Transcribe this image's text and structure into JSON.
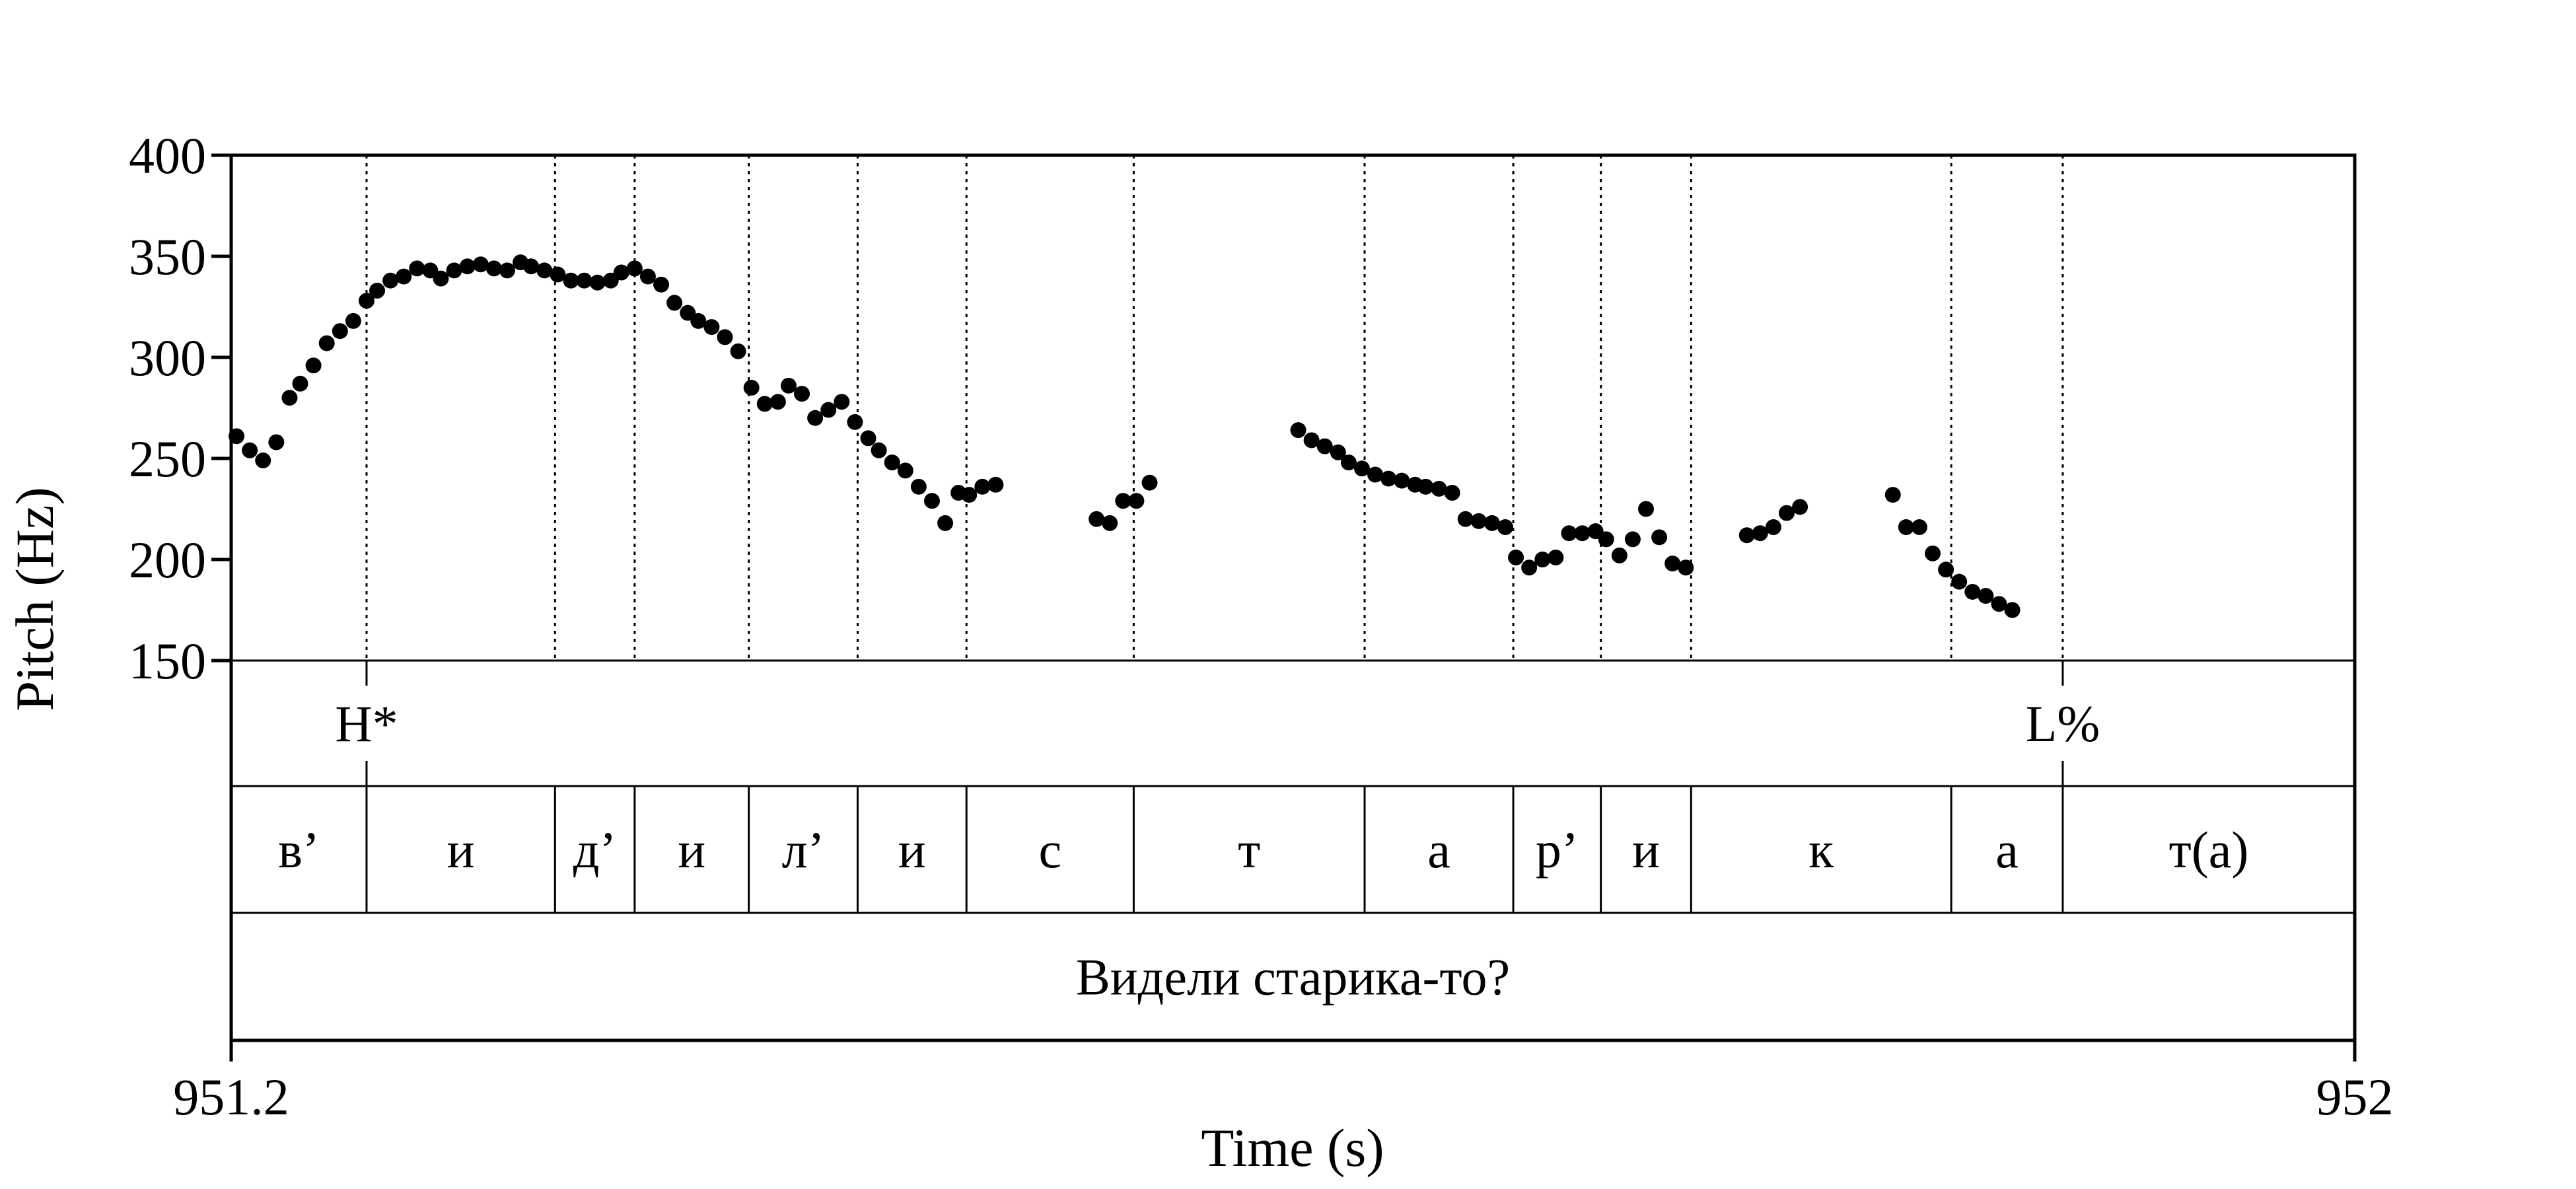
{
  "chart_data": {
    "type": "scatter",
    "title": "",
    "xlabel": "Time (s)",
    "ylabel": "Pitch (Hz)",
    "xlim": [
      951.2,
      952
    ],
    "ylim": [
      150,
      400
    ],
    "x_tick_labels": [
      "951.2",
      "952"
    ],
    "y_ticks": [
      150,
      200,
      250,
      300,
      350,
      400
    ],
    "y_tick_labels": [
      "150",
      "200",
      "250",
      "300",
      "350",
      "400"
    ],
    "grid": false,
    "legend": "none",
    "point_color": "#000000",
    "points": [
      [
        951.202,
        261
      ],
      [
        951.207,
        254
      ],
      [
        951.212,
        249
      ],
      [
        951.217,
        258
      ],
      [
        951.222,
        280
      ],
      [
        951.226,
        287
      ],
      [
        951.231,
        296
      ],
      [
        951.236,
        307
      ],
      [
        951.241,
        313
      ],
      [
        951.246,
        318
      ],
      [
        951.251,
        328
      ],
      [
        951.255,
        333
      ],
      [
        951.26,
        338
      ],
      [
        951.265,
        340
      ],
      [
        951.27,
        344
      ],
      [
        951.275,
        343
      ],
      [
        951.279,
        339
      ],
      [
        951.284,
        343
      ],
      [
        951.289,
        345
      ],
      [
        951.294,
        346
      ],
      [
        951.299,
        344
      ],
      [
        951.304,
        343
      ],
      [
        951.309,
        347
      ],
      [
        951.313,
        345
      ],
      [
        951.318,
        343
      ],
      [
        951.323,
        341
      ],
      [
        951.328,
        338
      ],
      [
        951.333,
        338
      ],
      [
        951.338,
        337
      ],
      [
        951.343,
        338
      ],
      [
        951.347,
        342
      ],
      [
        951.352,
        344
      ],
      [
        951.357,
        340
      ],
      [
        951.362,
        336
      ],
      [
        951.367,
        327
      ],
      [
        951.372,
        322
      ],
      [
        951.376,
        318
      ],
      [
        951.381,
        315
      ],
      [
        951.386,
        310
      ],
      [
        951.391,
        303
      ],
      [
        951.396,
        285
      ],
      [
        951.401,
        277
      ],
      [
        951.406,
        278
      ],
      [
        951.41,
        286
      ],
      [
        951.415,
        282
      ],
      [
        951.42,
        270
      ],
      [
        951.425,
        274
      ],
      [
        951.43,
        278
      ],
      [
        951.435,
        268
      ],
      [
        951.44,
        260
      ],
      [
        951.444,
        254
      ],
      [
        951.449,
        248
      ],
      [
        951.454,
        244
      ],
      [
        951.459,
        236
      ],
      [
        951.464,
        229
      ],
      [
        951.469,
        218
      ],
      [
        951.474,
        233
      ],
      [
        951.478,
        232
      ],
      [
        951.483,
        236
      ],
      [
        951.488,
        237
      ],
      [
        951.526,
        220
      ],
      [
        951.531,
        218
      ],
      [
        951.536,
        229
      ],
      [
        951.541,
        229
      ],
      [
        951.546,
        238
      ],
      [
        951.602,
        264
      ],
      [
        951.607,
        259
      ],
      [
        951.612,
        256
      ],
      [
        951.617,
        253
      ],
      [
        951.621,
        248
      ],
      [
        951.626,
        245
      ],
      [
        951.631,
        242
      ],
      [
        951.636,
        240
      ],
      [
        951.641,
        239
      ],
      [
        951.646,
        237
      ],
      [
        951.65,
        236
      ],
      [
        951.655,
        235
      ],
      [
        951.66,
        233
      ],
      [
        951.665,
        220
      ],
      [
        951.67,
        219
      ],
      [
        951.675,
        218
      ],
      [
        951.68,
        216
      ],
      [
        951.684,
        201
      ],
      [
        951.689,
        196
      ],
      [
        951.694,
        200
      ],
      [
        951.699,
        201
      ],
      [
        951.704,
        213
      ],
      [
        951.709,
        213
      ],
      [
        951.714,
        214
      ],
      [
        951.718,
        210
      ],
      [
        951.723,
        202
      ],
      [
        951.728,
        210
      ],
      [
        951.733,
        225
      ],
      [
        951.738,
        211
      ],
      [
        951.743,
        198
      ],
      [
        951.748,
        196
      ],
      [
        951.771,
        212
      ],
      [
        951.776,
        213
      ],
      [
        951.781,
        216
      ],
      [
        951.786,
        223
      ],
      [
        951.791,
        226
      ],
      [
        951.826,
        232
      ],
      [
        951.831,
        216
      ],
      [
        951.836,
        216
      ],
      [
        951.841,
        203
      ],
      [
        951.846,
        195
      ],
      [
        951.851,
        189
      ],
      [
        951.856,
        184
      ],
      [
        951.861,
        182
      ],
      [
        951.866,
        178
      ],
      [
        951.871,
        175
      ]
    ],
    "boundaries": [
      951.251,
      951.322,
      951.352,
      951.395,
      951.436,
      951.477,
      951.54,
      951.627,
      951.683,
      951.716,
      951.75,
      951.848,
      951.89
    ],
    "tones": [
      {
        "label": "H*",
        "time": 951.251
      },
      {
        "label": "L%",
        "time": 951.89
      }
    ],
    "segments": [
      {
        "label": "в’",
        "start": 951.2,
        "end": 951.251
      },
      {
        "label": "и",
        "start": 951.251,
        "end": 951.322
      },
      {
        "label": "д’",
        "start": 951.322,
        "end": 951.352
      },
      {
        "label": "и",
        "start": 951.352,
        "end": 951.395
      },
      {
        "label": "л’",
        "start": 951.395,
        "end": 951.436
      },
      {
        "label": "и",
        "start": 951.436,
        "end": 951.477
      },
      {
        "label": "с",
        "start": 951.477,
        "end": 951.54
      },
      {
        "label": "т",
        "start": 951.54,
        "end": 951.627
      },
      {
        "label": "а",
        "start": 951.627,
        "end": 951.683
      },
      {
        "label": "р’",
        "start": 951.683,
        "end": 951.716
      },
      {
        "label": "и",
        "start": 951.716,
        "end": 951.75
      },
      {
        "label": "к",
        "start": 951.75,
        "end": 951.848
      },
      {
        "label": "а",
        "start": 951.848,
        "end": 951.89
      },
      {
        "label": "т(а)",
        "start": 951.89,
        "end": 952.0
      }
    ],
    "sentence": "Видели старика-то?"
  }
}
